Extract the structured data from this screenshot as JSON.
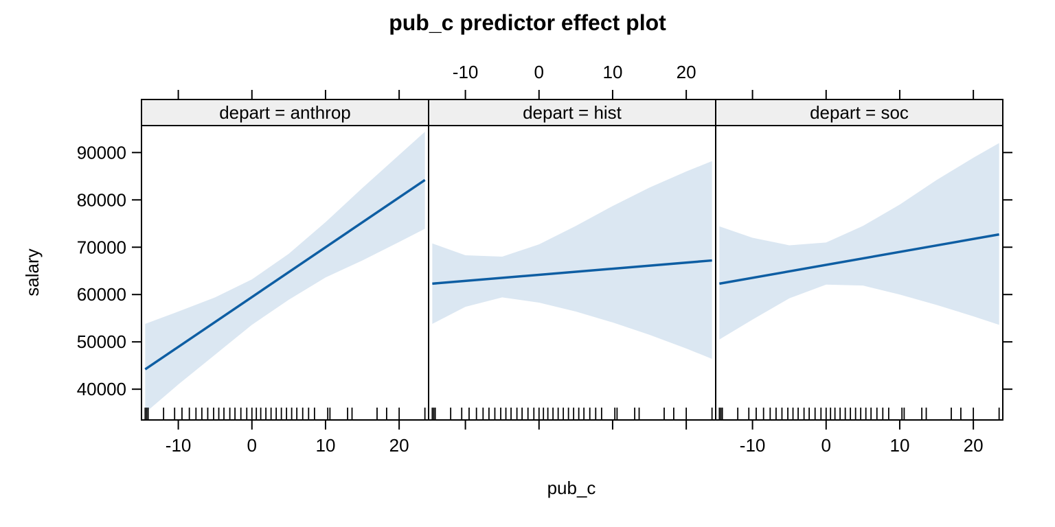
{
  "chart_data": {
    "type": "line",
    "title": "pub_c predictor effect plot",
    "xlabel": "pub_c",
    "ylabel": "salary",
    "xlim": [
      -15.0,
      24.0
    ],
    "ylim": [
      33500,
      95700
    ],
    "x_ticks": [
      -10,
      0,
      10,
      20
    ],
    "y_ticks": [
      40000,
      50000,
      60000,
      70000,
      80000,
      90000
    ],
    "line_color": "#0e5ea3",
    "band_color": "#dbe7f2",
    "strip_color": "#efefef",
    "panels": [
      {
        "strip_label": "depart = anthrop",
        "fit": {
          "x": [
            -14.5,
            23.5
          ],
          "y": [
            44200,
            84200
          ]
        },
        "band": {
          "x": [
            -14.5,
            -10,
            -5,
            0,
            5,
            10,
            15,
            20,
            23.5
          ],
          "lower": [
            35000,
            41000,
            47300,
            53600,
            58900,
            63600,
            67200,
            71100,
            73900
          ],
          "upper": [
            53800,
            56400,
            59400,
            63200,
            68600,
            75300,
            82500,
            89500,
            94400
          ]
        }
      },
      {
        "strip_label": "depart = hist",
        "fit": {
          "x": [
            -14.5,
            23.5
          ],
          "y": [
            62300,
            67200
          ]
        },
        "band": {
          "x": [
            -14.5,
            -10,
            -5,
            0,
            5,
            10,
            15,
            20,
            23.5
          ],
          "lower": [
            53800,
            57400,
            59400,
            58300,
            56400,
            54100,
            51500,
            48600,
            46400
          ],
          "upper": [
            70800,
            68300,
            68000,
            70600,
            74500,
            78700,
            82600,
            86000,
            88200
          ]
        }
      },
      {
        "strip_label": "depart = soc",
        "fit": {
          "x": [
            -14.5,
            23.5
          ],
          "y": [
            62300,
            72700
          ]
        },
        "band": {
          "x": [
            -14.5,
            -10,
            -5,
            0,
            5,
            10,
            15,
            20,
            23.5
          ],
          "lower": [
            50500,
            54700,
            59200,
            62100,
            61900,
            60000,
            57800,
            55400,
            53600
          ],
          "upper": [
            74400,
            72000,
            70400,
            71000,
            74500,
            79000,
            84200,
            88900,
            92000
          ]
        }
      }
    ],
    "rug_x": [
      -14.5,
      -14.3,
      -14.1,
      -12.0,
      -10.5,
      -9.5,
      -8.5,
      -7.6,
      -6.8,
      -6.0,
      -5.2,
      -4.5,
      -3.8,
      -3.0,
      -2.3,
      -1.5,
      -0.7,
      0.0,
      0.6,
      1.2,
      1.9,
      2.6,
      3.3,
      4.0,
      4.7,
      5.4,
      6.1,
      6.9,
      7.7,
      8.5,
      10.3,
      10.6,
      13.0,
      13.6,
      17.0,
      18.3,
      20.0,
      23.5
    ]
  }
}
